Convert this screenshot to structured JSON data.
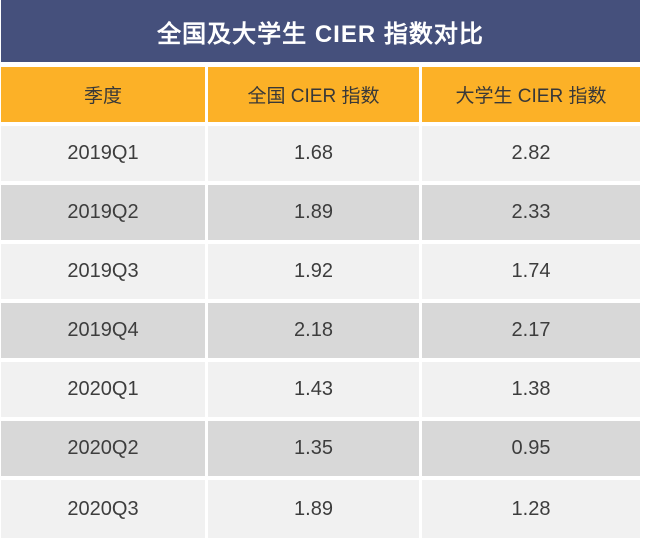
{
  "chart_data": {
    "type": "table",
    "title": "全国及大学生 CIER 指数对比",
    "columns": [
      "季度",
      "全国 CIER 指数",
      "大学生 CIER 指数"
    ],
    "rows": [
      [
        "2019Q1",
        "1.68",
        "2.82"
      ],
      [
        "2019Q2",
        "1.89",
        "2.33"
      ],
      [
        "2019Q3",
        "1.92",
        "1.74"
      ],
      [
        "2019Q4",
        "2.18",
        "2.17"
      ],
      [
        "2020Q1",
        "1.43",
        "1.38"
      ],
      [
        "2020Q2",
        "1.35",
        "0.95"
      ],
      [
        "2020Q3",
        "1.89",
        "1.28"
      ]
    ],
    "layout_hints": {
      "striped_rows": true,
      "header_position": "top",
      "title_position": "top-banner"
    }
  },
  "colors": {
    "title_bg": "#45507C",
    "title_text": "#FFFFFF",
    "header_bg": "#FCB127",
    "row_light": "#F1F1F1",
    "row_dark": "#D8D8D8",
    "text_dark": "#3D3D3D"
  }
}
